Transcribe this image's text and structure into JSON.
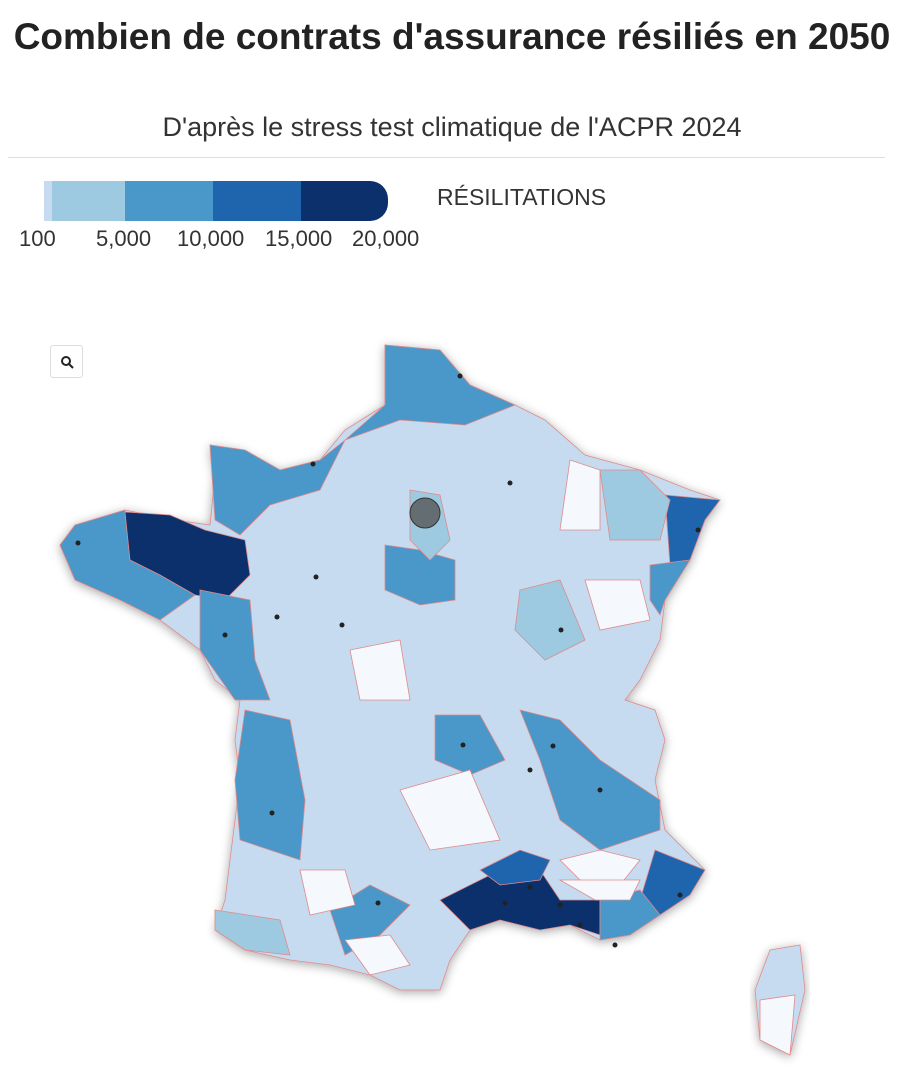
{
  "header": {
    "title": "Combien de contrats d'assurance résiliés en 2050",
    "subtitle": "D'après le stress test climatique de l'ACPR 2024"
  },
  "legend": {
    "title": "RÉSILITATIONS",
    "ticks": [
      "100",
      "5,000",
      "10,000",
      "15,000",
      "20,000"
    ],
    "colors": [
      "#c6dbef",
      "#9ecae1",
      "#4a97c9",
      "#1f65ad",
      "#0b306b"
    ]
  },
  "map": {
    "zoom_icon": "search-icon",
    "border_color": "#e08a8a",
    "highlight_color": "#555555"
  }
}
